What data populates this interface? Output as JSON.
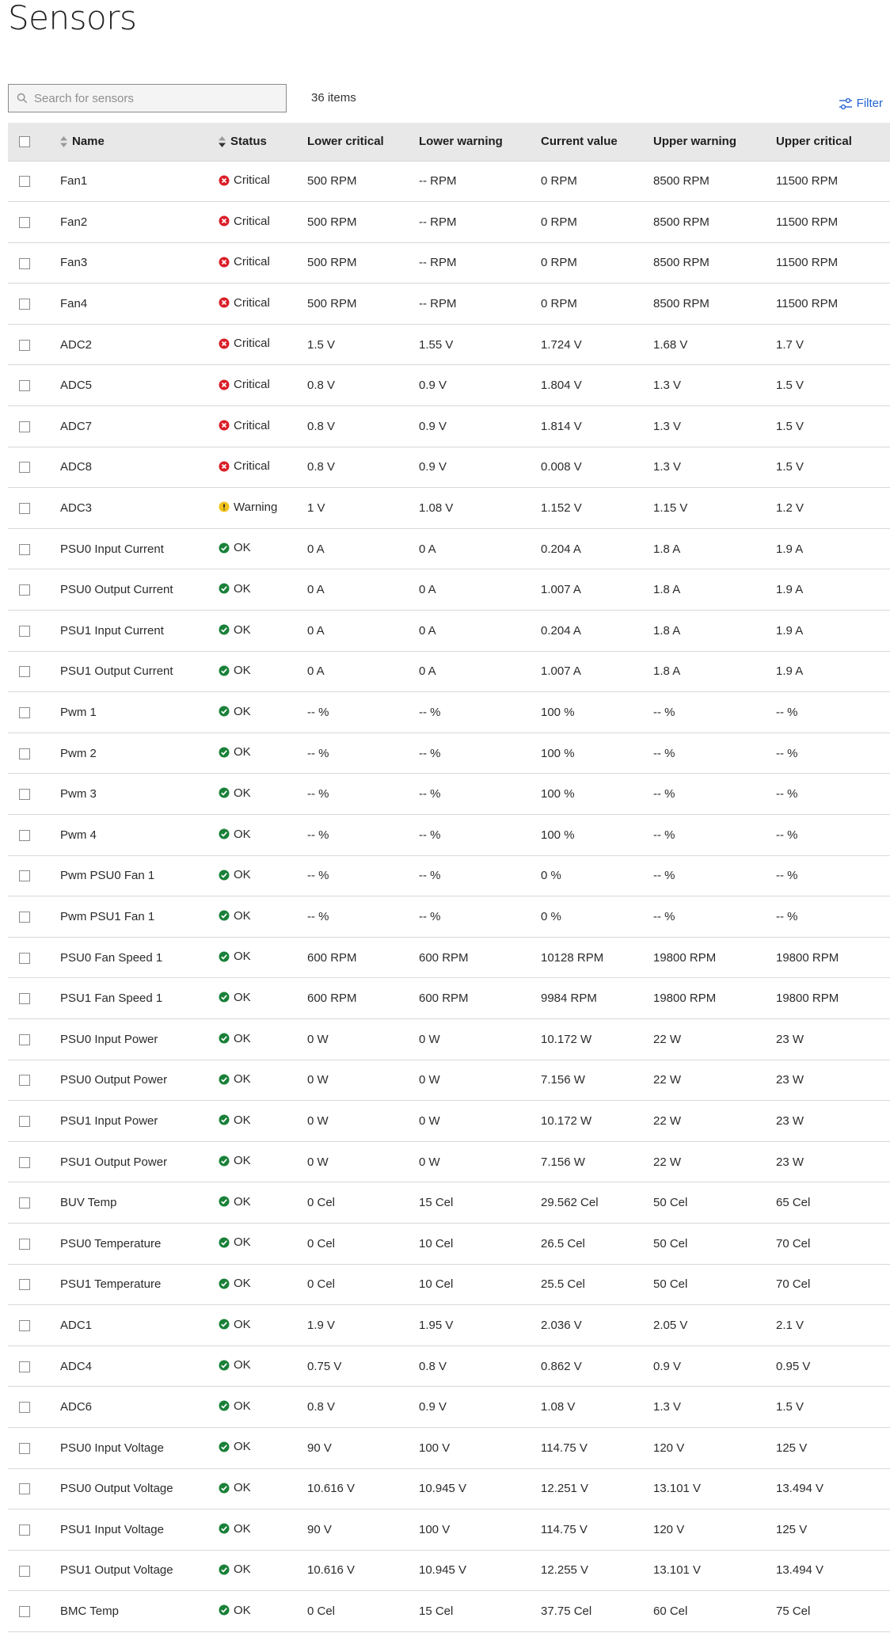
{
  "page": {
    "title": "Sensors"
  },
  "toolbar": {
    "search_placeholder": "Search for sensors",
    "items_count": "36 items",
    "filter_label": "Filter"
  },
  "colors": {
    "critical": "#da1e28",
    "warning": "#f1c21b",
    "ok": "#198038",
    "link": "#2463d1"
  },
  "table": {
    "headers": {
      "name": "Name",
      "status": "Status",
      "lower_critical": "Lower critical",
      "lower_warning": "Lower warning",
      "current_value": "Current value",
      "upper_warning": "Upper warning",
      "upper_critical": "Upper critical"
    },
    "rows": [
      {
        "name": "Fan1",
        "status": "Critical",
        "lc": "500 RPM",
        "lw": "-- RPM",
        "cv": "0 RPM",
        "uw": "8500 RPM",
        "uc": "11500 RPM"
      },
      {
        "name": "Fan2",
        "status": "Critical",
        "lc": "500 RPM",
        "lw": "-- RPM",
        "cv": "0 RPM",
        "uw": "8500 RPM",
        "uc": "11500 RPM"
      },
      {
        "name": "Fan3",
        "status": "Critical",
        "lc": "500 RPM",
        "lw": "-- RPM",
        "cv": "0 RPM",
        "uw": "8500 RPM",
        "uc": "11500 RPM"
      },
      {
        "name": "Fan4",
        "status": "Critical",
        "lc": "500 RPM",
        "lw": "-- RPM",
        "cv": "0 RPM",
        "uw": "8500 RPM",
        "uc": "11500 RPM"
      },
      {
        "name": "ADC2",
        "status": "Critical",
        "lc": "1.5 V",
        "lw": "1.55 V",
        "cv": "1.724 V",
        "uw": "1.68 V",
        "uc": "1.7 V"
      },
      {
        "name": "ADC5",
        "status": "Critical",
        "lc": "0.8 V",
        "lw": "0.9 V",
        "cv": "1.804 V",
        "uw": "1.3 V",
        "uc": "1.5 V"
      },
      {
        "name": "ADC7",
        "status": "Critical",
        "lc": "0.8 V",
        "lw": "0.9 V",
        "cv": "1.814 V",
        "uw": "1.3 V",
        "uc": "1.5 V"
      },
      {
        "name": "ADC8",
        "status": "Critical",
        "lc": "0.8 V",
        "lw": "0.9 V",
        "cv": "0.008 V",
        "uw": "1.3 V",
        "uc": "1.5 V"
      },
      {
        "name": "ADC3",
        "status": "Warning",
        "lc": "1 V",
        "lw": "1.08 V",
        "cv": "1.152 V",
        "uw": "1.15 V",
        "uc": "1.2 V"
      },
      {
        "name": "PSU0 Input Current",
        "status": "OK",
        "lc": "0 A",
        "lw": "0 A",
        "cv": "0.204 A",
        "uw": "1.8 A",
        "uc": "1.9 A"
      },
      {
        "name": "PSU0 Output Current",
        "status": "OK",
        "lc": "0 A",
        "lw": "0 A",
        "cv": "1.007 A",
        "uw": "1.8 A",
        "uc": "1.9 A"
      },
      {
        "name": "PSU1 Input Current",
        "status": "OK",
        "lc": "0 A",
        "lw": "0 A",
        "cv": "0.204 A",
        "uw": "1.8 A",
        "uc": "1.9 A"
      },
      {
        "name": "PSU1 Output Current",
        "status": "OK",
        "lc": "0 A",
        "lw": "0 A",
        "cv": "1.007 A",
        "uw": "1.8 A",
        "uc": "1.9 A"
      },
      {
        "name": "Pwm 1",
        "status": "OK",
        "lc": "-- %",
        "lw": "-- %",
        "cv": "100 %",
        "uw": "-- %",
        "uc": "-- %"
      },
      {
        "name": "Pwm 2",
        "status": "OK",
        "lc": "-- %",
        "lw": "-- %",
        "cv": "100 %",
        "uw": "-- %",
        "uc": "-- %"
      },
      {
        "name": "Pwm 3",
        "status": "OK",
        "lc": "-- %",
        "lw": "-- %",
        "cv": "100 %",
        "uw": "-- %",
        "uc": "-- %"
      },
      {
        "name": "Pwm 4",
        "status": "OK",
        "lc": "-- %",
        "lw": "-- %",
        "cv": "100 %",
        "uw": "-- %",
        "uc": "-- %"
      },
      {
        "name": "Pwm PSU0 Fan 1",
        "status": "OK",
        "lc": "-- %",
        "lw": "-- %",
        "cv": "0 %",
        "uw": "-- %",
        "uc": "-- %"
      },
      {
        "name": "Pwm PSU1 Fan 1",
        "status": "OK",
        "lc": "-- %",
        "lw": "-- %",
        "cv": "0 %",
        "uw": "-- %",
        "uc": "-- %"
      },
      {
        "name": "PSU0 Fan Speed 1",
        "status": "OK",
        "lc": "600 RPM",
        "lw": "600 RPM",
        "cv": "10128 RPM",
        "uw": "19800 RPM",
        "uc": "19800 RPM"
      },
      {
        "name": "PSU1 Fan Speed 1",
        "status": "OK",
        "lc": "600 RPM",
        "lw": "600 RPM",
        "cv": "9984 RPM",
        "uw": "19800 RPM",
        "uc": "19800 RPM"
      },
      {
        "name": "PSU0 Input Power",
        "status": "OK",
        "lc": "0 W",
        "lw": "0 W",
        "cv": "10.172 W",
        "uw": "22 W",
        "uc": "23 W"
      },
      {
        "name": "PSU0 Output Power",
        "status": "OK",
        "lc": "0 W",
        "lw": "0 W",
        "cv": "7.156 W",
        "uw": "22 W",
        "uc": "23 W"
      },
      {
        "name": "PSU1 Input Power",
        "status": "OK",
        "lc": "0 W",
        "lw": "0 W",
        "cv": "10.172 W",
        "uw": "22 W",
        "uc": "23 W"
      },
      {
        "name": "PSU1 Output Power",
        "status": "OK",
        "lc": "0 W",
        "lw": "0 W",
        "cv": "7.156 W",
        "uw": "22 W",
        "uc": "23 W"
      },
      {
        "name": "BUV Temp",
        "status": "OK",
        "lc": "0 Cel",
        "lw": "15 Cel",
        "cv": "29.562 Cel",
        "uw": "50 Cel",
        "uc": "65 Cel"
      },
      {
        "name": "PSU0 Temperature",
        "status": "OK",
        "lc": "0 Cel",
        "lw": "10 Cel",
        "cv": "26.5 Cel",
        "uw": "50 Cel",
        "uc": "70 Cel"
      },
      {
        "name": "PSU1 Temperature",
        "status": "OK",
        "lc": "0 Cel",
        "lw": "10 Cel",
        "cv": "25.5 Cel",
        "uw": "50 Cel",
        "uc": "70 Cel"
      },
      {
        "name": "ADC1",
        "status": "OK",
        "lc": "1.9 V",
        "lw": "1.95 V",
        "cv": "2.036 V",
        "uw": "2.05 V",
        "uc": "2.1 V"
      },
      {
        "name": "ADC4",
        "status": "OK",
        "lc": "0.75 V",
        "lw": "0.8 V",
        "cv": "0.862 V",
        "uw": "0.9 V",
        "uc": "0.95 V"
      },
      {
        "name": "ADC6",
        "status": "OK",
        "lc": "0.8 V",
        "lw": "0.9 V",
        "cv": "1.08 V",
        "uw": "1.3 V",
        "uc": "1.5 V"
      },
      {
        "name": "PSU0 Input Voltage",
        "status": "OK",
        "lc": "90 V",
        "lw": "100 V",
        "cv": "114.75 V",
        "uw": "120 V",
        "uc": "125 V"
      },
      {
        "name": "PSU0 Output Voltage",
        "status": "OK",
        "lc": "10.616 V",
        "lw": "10.945 V",
        "cv": "12.251 V",
        "uw": "13.101 V",
        "uc": "13.494 V"
      },
      {
        "name": "PSU1 Input Voltage",
        "status": "OK",
        "lc": "90 V",
        "lw": "100 V",
        "cv": "114.75 V",
        "uw": "120 V",
        "uc": "125 V"
      },
      {
        "name": "PSU1 Output Voltage",
        "status": "OK",
        "lc": "10.616 V",
        "lw": "10.945 V",
        "cv": "12.255 V",
        "uw": "13.101 V",
        "uc": "13.494 V"
      },
      {
        "name": "BMC Temp",
        "status": "OK",
        "lc": "0 Cel",
        "lw": "15 Cel",
        "cv": "37.75 Cel",
        "uw": "60 Cel",
        "uc": "75 Cel"
      }
    ]
  }
}
